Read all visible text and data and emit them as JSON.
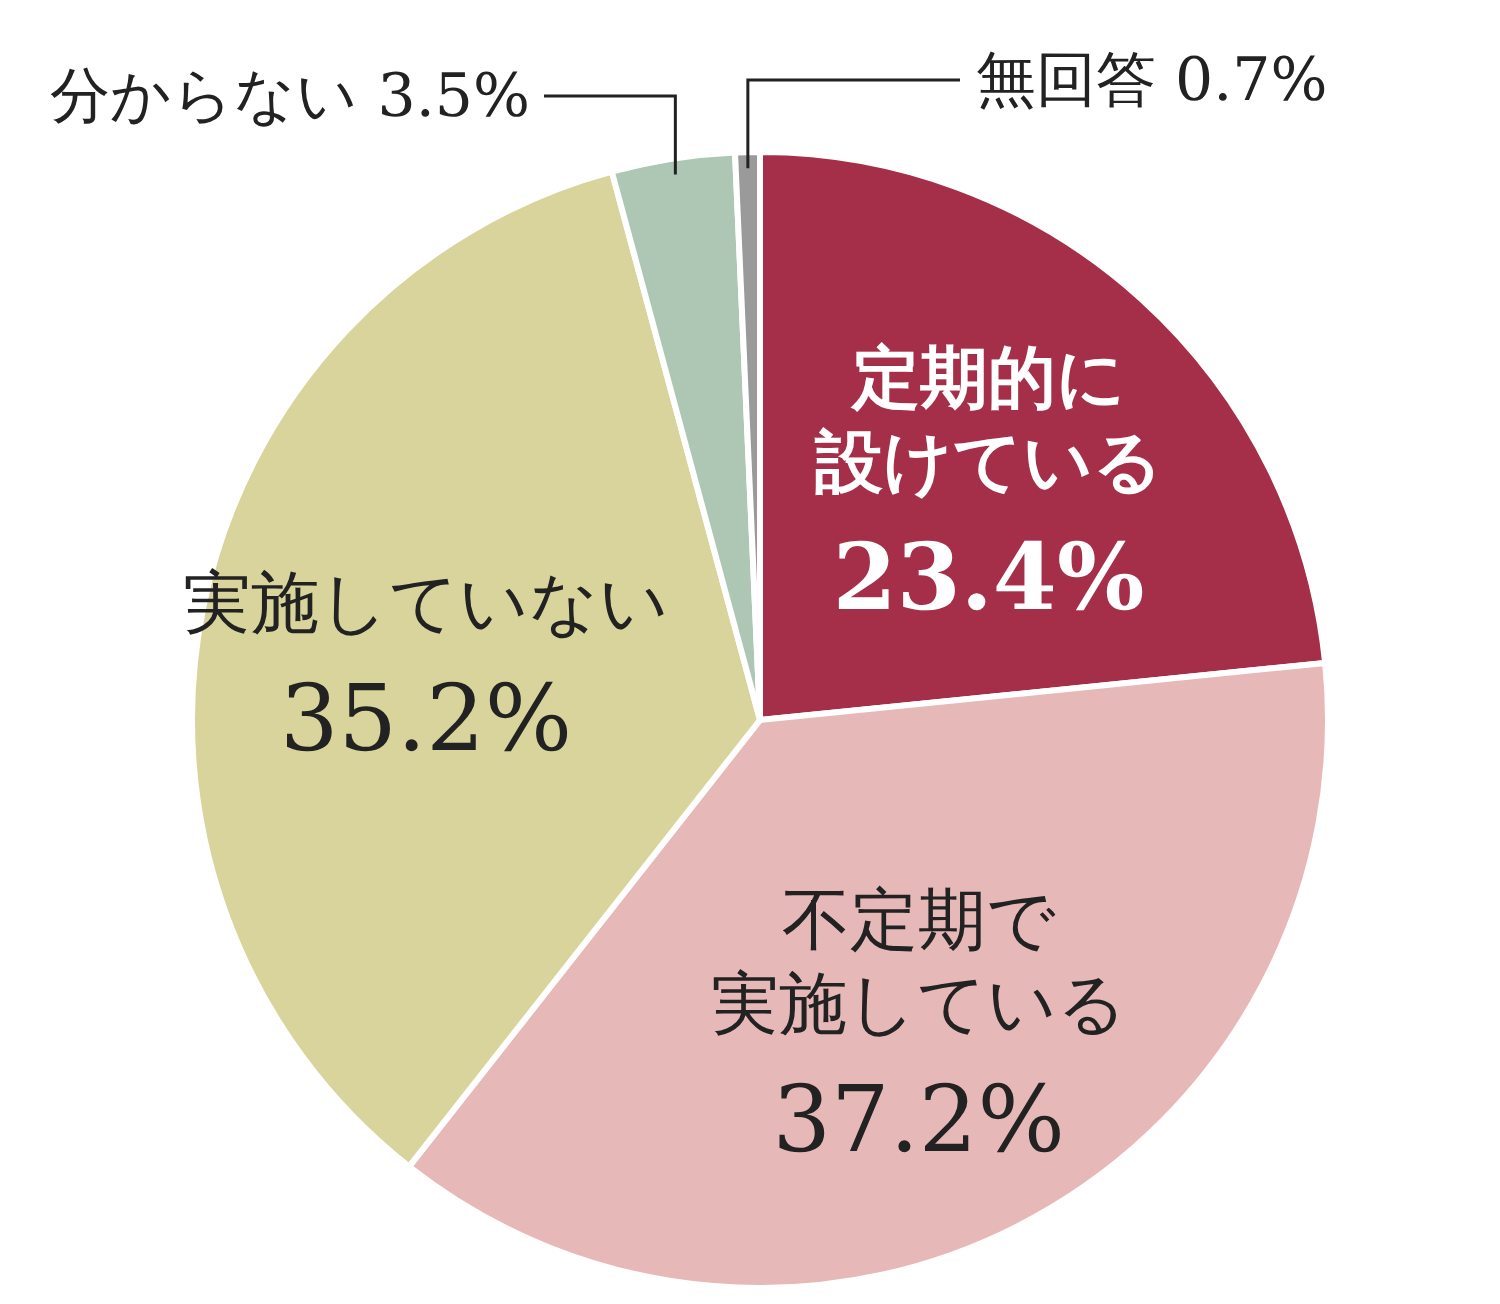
{
  "chart_data": {
    "type": "pie",
    "categories": [
      "定期的に設けている",
      "不定期で実施している",
      "実施していない",
      "分からない",
      "無回答"
    ],
    "values": [
      23.4,
      37.2,
      35.2,
      3.5,
      0.7
    ],
    "colors": [
      "#a52f48",
      "#e6b9b8",
      "#d9d49c",
      "#aec6b4",
      "#9a9a9a"
    ],
    "value_labels": [
      "23.4%",
      "37.2%",
      "35.2%",
      "3.5%",
      "0.7%"
    ]
  }
}
